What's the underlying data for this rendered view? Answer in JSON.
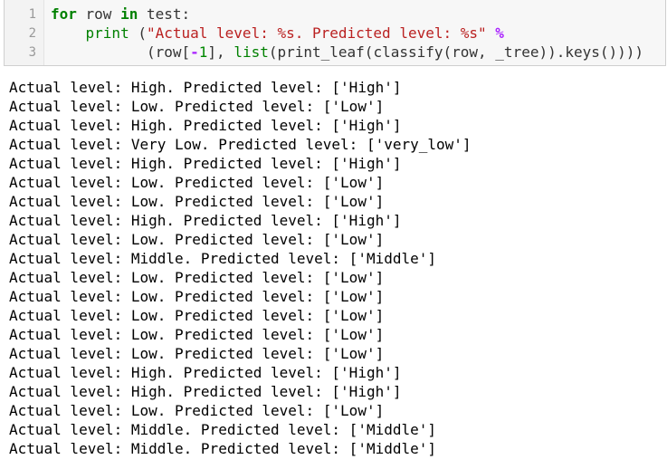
{
  "code_cell": {
    "line_numbers": [
      "1",
      "2",
      "3"
    ],
    "lines": [
      [
        {
          "t": "kw",
          "v": "for"
        },
        {
          "t": "plain",
          "v": " row "
        },
        {
          "t": "kw",
          "v": "in"
        },
        {
          "t": "plain",
          "v": " test:"
        }
      ],
      [
        {
          "t": "plain",
          "v": "    "
        },
        {
          "t": "bi",
          "v": "print"
        },
        {
          "t": "plain",
          "v": " ("
        },
        {
          "t": "str",
          "v": "\"Actual level: %s. Predicted level: %s\""
        },
        {
          "t": "plain",
          "v": " "
        },
        {
          "t": "op",
          "v": "%"
        }
      ],
      [
        {
          "t": "plain",
          "v": "           (row["
        },
        {
          "t": "op",
          "v": "-"
        },
        {
          "t": "num",
          "v": "1"
        },
        {
          "t": "plain",
          "v": "], "
        },
        {
          "t": "bi",
          "v": "list"
        },
        {
          "t": "plain",
          "v": "(print_leaf(classify(row, _tree)).keys())))"
        }
      ]
    ]
  },
  "output": {
    "lines": [
      "Actual level: High. Predicted level: ['High']",
      "Actual level: Low. Predicted level: ['Low']",
      "Actual level: High. Predicted level: ['High']",
      "Actual level: Very Low. Predicted level: ['very_low']",
      "Actual level: High. Predicted level: ['High']",
      "Actual level: Low. Predicted level: ['Low']",
      "Actual level: Low. Predicted level: ['Low']",
      "Actual level: High. Predicted level: ['High']",
      "Actual level: Low. Predicted level: ['Low']",
      "Actual level: Middle. Predicted level: ['Middle']",
      "Actual level: Low. Predicted level: ['Low']",
      "Actual level: Low. Predicted level: ['Low']",
      "Actual level: Low. Predicted level: ['Low']",
      "Actual level: Low. Predicted level: ['Low']",
      "Actual level: Low. Predicted level: ['Low']",
      "Actual level: High. Predicted level: ['High']",
      "Actual level: High. Predicted level: ['High']",
      "Actual level: Low. Predicted level: ['Low']",
      "Actual level: Middle. Predicted level: ['Middle']",
      "Actual level: Middle. Predicted level: ['Middle']"
    ]
  }
}
